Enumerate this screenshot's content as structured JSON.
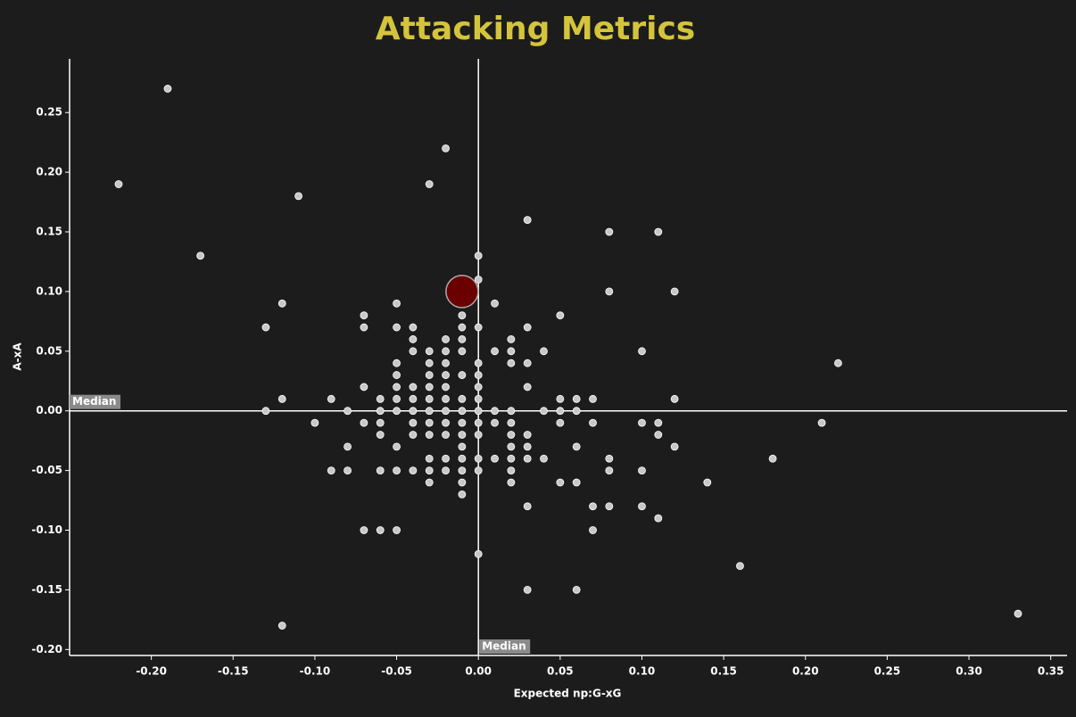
{
  "chart_data": {
    "type": "scatter",
    "title": "Attacking Metrics",
    "x_label": "Expected np:G-xG",
    "y_label": "A-xA",
    "color": "#c8c8c8",
    "x": [
      -0.19,
      -0.22,
      -0.11,
      -0.17,
      -0.02,
      -0.03,
      0.03,
      0.08,
      0.11,
      0,
      0,
      -0.12,
      0.08,
      0.12,
      0.01,
      -0.05,
      -0.07,
      -0.01,
      0.05,
      -0.13,
      -0.07,
      -0.05,
      -0.04,
      -0.01,
      0,
      0.03,
      -0.04,
      -0.02,
      -0.01,
      0.02,
      -0.04,
      -0.03,
      -0.02,
      -0.01,
      0.01,
      0.02,
      0.04,
      0.1,
      -0.05,
      -0.03,
      -0.02,
      0,
      0.02,
      0.03,
      0.22,
      -0.05,
      -0.03,
      -0.02,
      -0.01,
      0,
      -0.07,
      -0.05,
      -0.04,
      -0.03,
      -0.02,
      0,
      0.03,
      -0.12,
      -0.09,
      -0.06,
      -0.05,
      -0.04,
      -0.03,
      -0.02,
      -0.01,
      0,
      0.05,
      0.06,
      0.07,
      0.12,
      -0.13,
      -0.08,
      -0.06,
      -0.05,
      -0.04,
      -0.03,
      -0.02,
      -0.01,
      0,
      0.01,
      0.02,
      0.04,
      0.05,
      0.06,
      -0.1,
      -0.07,
      -0.06,
      -0.04,
      -0.03,
      -0.02,
      -0.01,
      0,
      0.01,
      0.02,
      0.05,
      0.07,
      0.1,
      0.11,
      0.21,
      -0.06,
      -0.04,
      -0.03,
      -0.02,
      -0.01,
      0,
      0.02,
      0.03,
      0.11,
      -0.08,
      -0.05,
      -0.01,
      0.02,
      0.03,
      0.06,
      0.12,
      -0.03,
      -0.02,
      -0.01,
      0,
      0.01,
      0.02,
      0.03,
      0.04,
      0.08,
      0.18,
      -0.09,
      -0.08,
      -0.06,
      -0.05,
      -0.04,
      -0.03,
      -0.02,
      -0.01,
      0,
      0.02,
      0.08,
      0.1,
      -0.03,
      -0.01,
      0.02,
      0.05,
      0.06,
      0.14,
      -0.01,
      0.03,
      0.07,
      0.08,
      0.1,
      0.11,
      -0.07,
      -0.06,
      -0.05,
      0.07,
      0,
      0.16,
      0.03,
      0.06,
      -0.12,
      0.33
    ],
    "values": [
      0.27,
      0.19,
      0.18,
      0.13,
      0.22,
      0.19,
      0.16,
      0.15,
      0.15,
      0.13,
      0.11,
      0.09,
      0.1,
      0.1,
      0.09,
      0.09,
      0.08,
      0.08,
      0.08,
      0.07,
      0.07,
      0.07,
      0.07,
      0.07,
      0.07,
      0.07,
      0.06,
      0.06,
      0.06,
      0.06,
      0.05,
      0.05,
      0.05,
      0.05,
      0.05,
      0.05,
      0.05,
      0.05,
      0.04,
      0.04,
      0.04,
      0.04,
      0.04,
      0.04,
      0.04,
      0.03,
      0.03,
      0.03,
      0.03,
      0.03,
      0.02,
      0.02,
      0.02,
      0.02,
      0.02,
      0.02,
      0.02,
      0.01,
      0.01,
      0.01,
      0.01,
      0.01,
      0.01,
      0.01,
      0.01,
      0.01,
      0.01,
      0.01,
      0.01,
      0.01,
      0,
      0,
      0,
      0,
      0,
      0,
      0,
      0,
      0,
      0,
      0,
      0,
      0,
      0,
      -0.01,
      -0.01,
      -0.01,
      -0.01,
      -0.01,
      -0.01,
      -0.01,
      -0.01,
      -0.01,
      -0.01,
      -0.01,
      -0.01,
      -0.01,
      -0.01,
      -0.01,
      -0.02,
      -0.02,
      -0.02,
      -0.02,
      -0.02,
      -0.02,
      -0.02,
      -0.02,
      -0.02,
      -0.03,
      -0.03,
      -0.03,
      -0.03,
      -0.03,
      -0.03,
      -0.03,
      -0.04,
      -0.04,
      -0.04,
      -0.04,
      -0.04,
      -0.04,
      -0.04,
      -0.04,
      -0.04,
      -0.04,
      -0.05,
      -0.05,
      -0.05,
      -0.05,
      -0.05,
      -0.05,
      -0.05,
      -0.05,
      -0.05,
      -0.05,
      -0.05,
      -0.05,
      -0.06,
      -0.06,
      -0.06,
      -0.06,
      -0.06,
      -0.06,
      -0.07,
      -0.08,
      -0.08,
      -0.08,
      -0.08,
      -0.09,
      -0.1,
      -0.1,
      -0.1,
      -0.1,
      -0.12,
      -0.13,
      -0.15,
      -0.15,
      -0.18,
      -0.17
    ],
    "highlight": {
      "x": -0.01,
      "value": 0.1,
      "color": "#6b0000"
    },
    "x_median": {
      "value": 0,
      "label": "Median"
    },
    "y_median": {
      "value": 0,
      "label": "Median"
    },
    "xlim": [
      -0.25,
      0.36
    ],
    "ylim": [
      -0.205,
      0.295
    ],
    "xticks": [
      {
        "value": -0.2,
        "label": "-0.20"
      },
      {
        "value": -0.15,
        "label": "-0.15"
      },
      {
        "value": -0.1,
        "label": "-0.10"
      },
      {
        "value": -0.05,
        "label": "-0.05"
      },
      {
        "value": 0,
        "label": "0.00"
      },
      {
        "value": 0.05,
        "label": "0.05"
      },
      {
        "value": 0.1,
        "label": "0.10"
      },
      {
        "value": 0.15,
        "label": "0.15"
      },
      {
        "value": 0.2,
        "label": "0.20"
      },
      {
        "value": 0.25,
        "label": "0.25"
      },
      {
        "value": 0.3,
        "label": "0.30"
      },
      {
        "value": 0.35,
        "label": "0.35"
      }
    ],
    "yticks": [
      {
        "value": -0.2,
        "label": "-0.20"
      },
      {
        "value": -0.15,
        "label": "-0.15"
      },
      {
        "value": -0.1,
        "label": "-0.10"
      },
      {
        "value": -0.05,
        "label": "-0.05"
      },
      {
        "value": 0,
        "label": "0.00"
      },
      {
        "value": 0.05,
        "label": "0.05"
      },
      {
        "value": 0.1,
        "label": "0.10"
      },
      {
        "value": 0.15,
        "label": "0.15"
      },
      {
        "value": 0.2,
        "label": "0.20"
      },
      {
        "value": 0.25,
        "label": "0.25"
      }
    ]
  }
}
